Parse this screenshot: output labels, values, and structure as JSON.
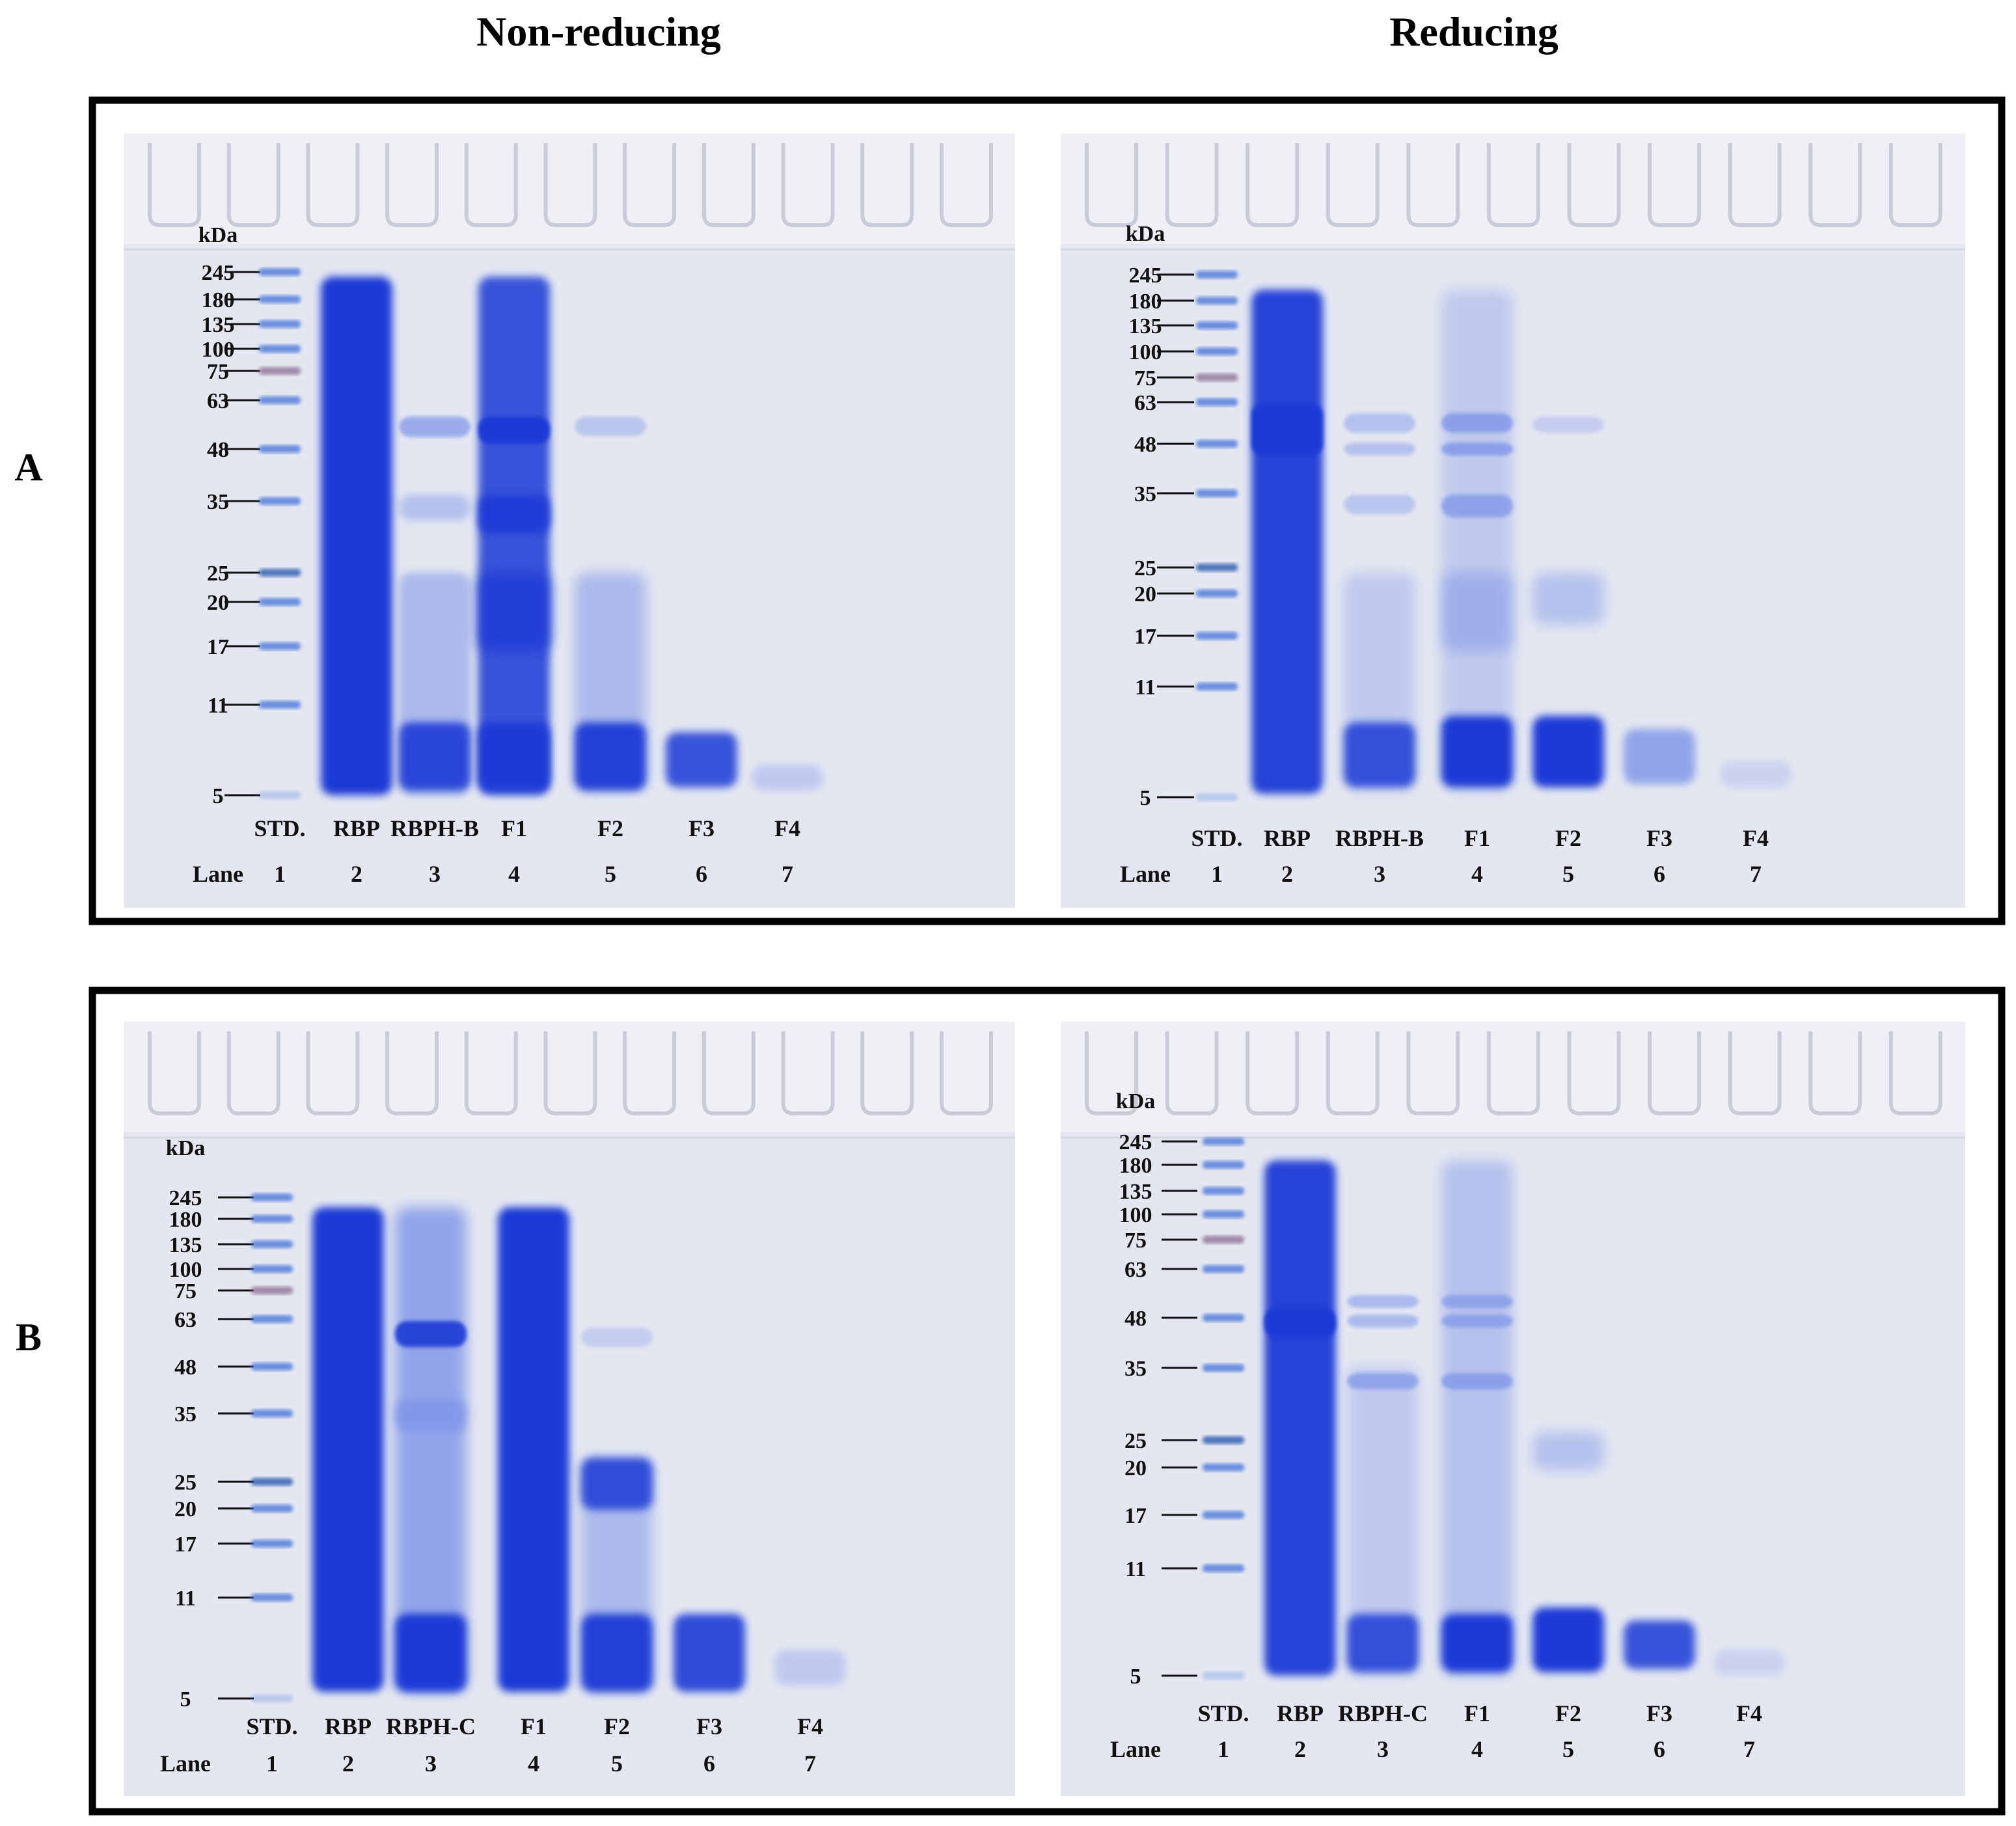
{
  "column_titles": {
    "left": "Non-reducing",
    "right": "Reducing"
  },
  "rows": [
    {
      "label": "A",
      "panels": [
        {
          "condition": "Non-reducing",
          "kda_unit": "kDa",
          "markers": [
            "245",
            "180",
            "135",
            "100",
            "75",
            "63",
            "48",
            "35",
            "25",
            "20",
            "17",
            "11",
            "5"
          ],
          "lane_names": [
            "STD.",
            "RBP",
            "RBPH-B",
            "F1",
            "F2",
            "F3",
            "F4"
          ],
          "lane_label": "Lane",
          "lane_numbers": [
            "1",
            "2",
            "3",
            "4",
            "5",
            "6",
            "7"
          ]
        },
        {
          "condition": "Reducing",
          "kda_unit": "kDa",
          "markers": [
            "245",
            "180",
            "135",
            "100",
            "75",
            "63",
            "48",
            "35",
            "25",
            "20",
            "17",
            "11",
            "5"
          ],
          "lane_names": [
            "STD.",
            "RBP",
            "RBPH-B",
            "F1",
            "F2",
            "F3",
            "F4"
          ],
          "lane_label": "Lane",
          "lane_numbers": [
            "1",
            "2",
            "3",
            "4",
            "5",
            "6",
            "7"
          ]
        }
      ]
    },
    {
      "label": "B",
      "panels": [
        {
          "condition": "Non-reducing",
          "kda_unit": "kDa",
          "markers": [
            "245",
            "180",
            "135",
            "100",
            "75",
            "63",
            "48",
            "35",
            "25",
            "20",
            "17",
            "11",
            "5"
          ],
          "lane_names": [
            "STD.",
            "RBP",
            "RBPH-C",
            "F1",
            "F2",
            "F3",
            "F4"
          ],
          "lane_label": "Lane",
          "lane_numbers": [
            "1",
            "2",
            "3",
            "4",
            "5",
            "6",
            "7"
          ]
        },
        {
          "condition": "Reducing",
          "kda_unit": "kDa",
          "markers": [
            "245",
            "180",
            "135",
            "100",
            "75",
            "63",
            "48",
            "35",
            "25",
            "20",
            "17",
            "11",
            "5"
          ],
          "lane_names": [
            "STD.",
            "RBP",
            "RBPH-C",
            "F1",
            "F2",
            "F3",
            "F4"
          ],
          "lane_label": "Lane",
          "lane_numbers": [
            "1",
            "2",
            "3",
            "4",
            "5",
            "6",
            "7"
          ]
        }
      ]
    }
  ],
  "colors": {
    "gel_bg": "#e4e7f1",
    "stain_dark": "#1a3ad6",
    "stain_light": "#7e94e8",
    "frame": "#000000"
  }
}
